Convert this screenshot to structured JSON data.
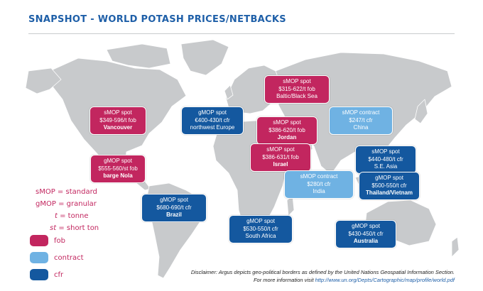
{
  "title": "SNAPSHOT - WORLD POTASH PRICES/NETBACKS",
  "colors": {
    "fob": "#c2265f",
    "contract": "#6fb2e3",
    "cfr": "#14589f",
    "land": "#c8cacc",
    "title": "#1e5fa8"
  },
  "boxes": {
    "baltic": {
      "line1": "sMOP spot",
      "line2": "$315-622/t fob",
      "line3": "Baltic/Black Sea",
      "type": "fob"
    },
    "vancouver": {
      "line1": "sMOP spot",
      "line2": "$349-596/t fob",
      "line3": "Vancouver",
      "type": "fob"
    },
    "nweurope": {
      "line1": "gMOP spot",
      "line2": "€400-430/t cfr",
      "line3": "northwest Europe",
      "type": "cfr"
    },
    "jordan": {
      "line1": "sMOP spot",
      "line2": "$386-620/t fob",
      "line3": "Jordan",
      "type": "fob"
    },
    "china": {
      "line1": "sMOP contract",
      "line2": "$247/t cfr",
      "line3": "China",
      "type": "contract"
    },
    "israel": {
      "line1": "sMOP spot",
      "line2": "$386-631/t fob",
      "line3": "Israel",
      "type": "fob"
    },
    "nola": {
      "line1": "gMOP spot",
      "line2": "$555-560/st fob",
      "line3": "barge Nola",
      "type": "fob"
    },
    "seasia": {
      "line1": "sMOP spot",
      "line2": "$440-480/t cfr",
      "line3": "S.E. Asia",
      "type": "cfr"
    },
    "india": {
      "line1": "sMOP contract",
      "line2": "$280/t cfr",
      "line3": "India",
      "type": "contract"
    },
    "thailand": {
      "line1": "gMOP spot",
      "line2": "$500-550/t cfr",
      "line3": "Thailand/Vietnam",
      "type": "cfr"
    },
    "brazil": {
      "line1": "gMOP spot",
      "line2": "$680-690/t cfr",
      "line3": "Brazil",
      "type": "cfr"
    },
    "southafrica": {
      "line1": "gMOP spot",
      "line2": "$530-550/t cfr",
      "line3": "South Africa",
      "type": "cfr"
    },
    "australia": {
      "line1": "gMOP spot",
      "line2": "$430-450/t cfr",
      "line3": "Australia",
      "type": "cfr"
    }
  },
  "abbreviations": [
    {
      "abbr": "sMOP",
      "sep": " = ",
      "meaning": "standard"
    },
    {
      "abbr": "gMOP",
      "sep": " = ",
      "meaning": "granular"
    },
    {
      "abbr": "t",
      "sep": " = ",
      "meaning": "tonne"
    },
    {
      "abbr": "st",
      "sep": " = ",
      "meaning": "short ton"
    }
  ],
  "legend": [
    {
      "label": "fob",
      "color": "#c2265f"
    },
    {
      "label": "contract",
      "color": "#6fb2e3"
    },
    {
      "label": "cfr",
      "color": "#14589f"
    }
  ],
  "disclaimer": {
    "line1": "Disclaimer: Argus depicts geo-political borders as defined by the United Nations Geospatial Information Section.",
    "line2_prefix": "For more information visit ",
    "url": "http://www.un.org/Depts/Cartographic/map/profile/world.pdf"
  }
}
